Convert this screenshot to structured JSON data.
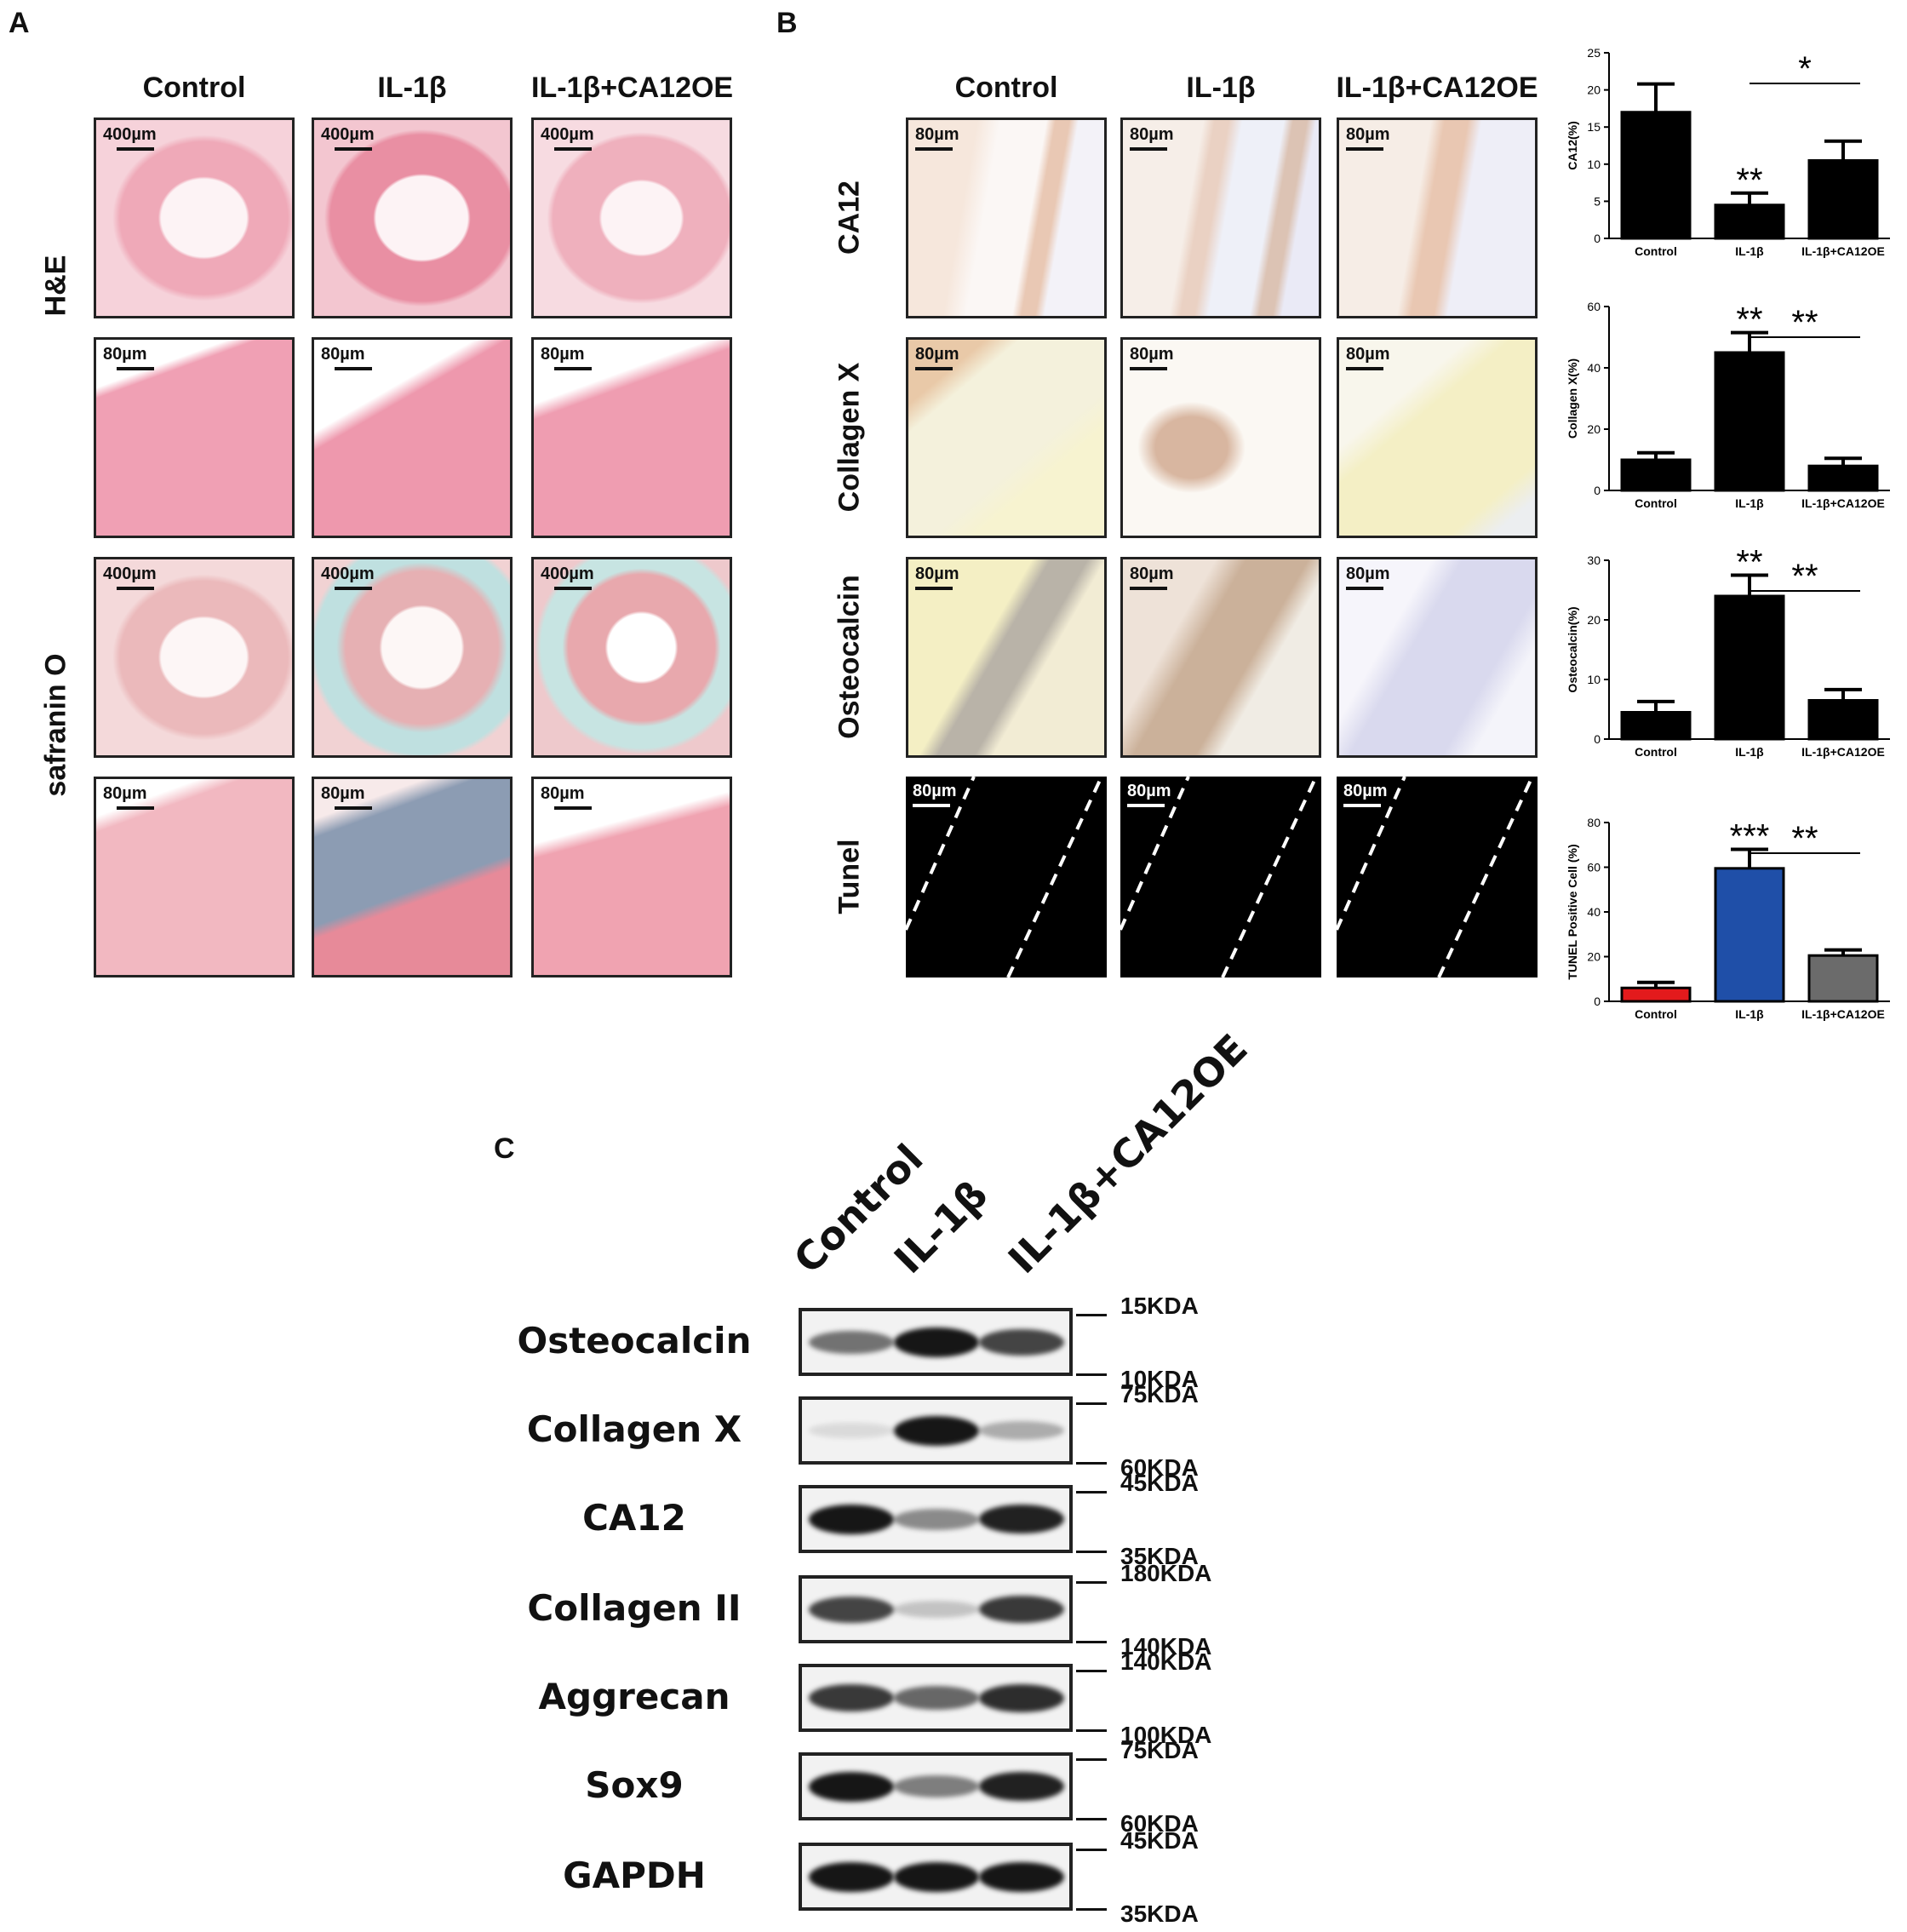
{
  "panelA": {
    "letter": "A",
    "columns": [
      "Control",
      "IL-1β",
      "IL-1β+CA12OE"
    ],
    "row_labels": [
      "H&E",
      "safranin O"
    ],
    "scale_labels": [
      [
        "400µm",
        "400µm",
        "400µm"
      ],
      [
        "80µm",
        "80µm",
        "80µm"
      ],
      [
        "400µm",
        "400µm",
        "400µm"
      ],
      [
        "80µm",
        "80µm",
        "80µm"
      ]
    ]
  },
  "panelB": {
    "letter": "B",
    "columns": [
      "Control",
      "IL-1β",
      "IL-1β+CA12OE"
    ],
    "row_labels": [
      "CA12",
      "Collagen X",
      "Osteocalcin",
      "Tunel"
    ],
    "scale_label": "80µm"
  },
  "chart_data": [
    {
      "type": "bar",
      "categories": [
        "Control",
        "IL-1β",
        "IL-1β+CA12OE"
      ],
      "values": [
        17,
        4.5,
        10.5
      ],
      "errors": [
        3.8,
        1.6,
        2.6
      ],
      "ylabel": "CA12(%)",
      "ylim": [
        0,
        25
      ],
      "yticks": [
        0,
        5,
        10,
        15,
        20,
        25
      ],
      "colors": [
        "#000000",
        "#000000",
        "#000000"
      ],
      "annotations": [
        {
          "text": "**",
          "category": "IL-1β"
        },
        {
          "text": "*",
          "between": [
            "IL-1β",
            "IL-1β+CA12OE"
          ]
        }
      ]
    },
    {
      "type": "bar",
      "categories": [
        "Control",
        "IL-1β",
        "IL-1β+CA12OE"
      ],
      "values": [
        10,
        45,
        8
      ],
      "errors": [
        2.3,
        6.5,
        2.5
      ],
      "ylabel": "Collagen X(%)",
      "ylim": [
        0,
        60
      ],
      "yticks": [
        0,
        20,
        40,
        60
      ],
      "colors": [
        "#000000",
        "#000000",
        "#000000"
      ],
      "annotations": [
        {
          "text": "**",
          "category": "IL-1β"
        },
        {
          "text": "**",
          "between": [
            "IL-1β",
            "IL-1β+CA12OE"
          ]
        }
      ]
    },
    {
      "type": "bar",
      "categories": [
        "Control",
        "IL-1β",
        "IL-1β+CA12OE"
      ],
      "values": [
        4.5,
        24,
        6.5
      ],
      "errors": [
        1.8,
        3.5,
        1.8
      ],
      "ylabel": "Osteocalcin(%)",
      "ylim": [
        0,
        30
      ],
      "yticks": [
        0,
        10,
        20,
        30
      ],
      "colors": [
        "#000000",
        "#000000",
        "#000000"
      ],
      "annotations": [
        {
          "text": "**",
          "category": "IL-1β"
        },
        {
          "text": "**",
          "between": [
            "IL-1β",
            "IL-1β+CA12OE"
          ]
        }
      ]
    },
    {
      "type": "bar",
      "categories": [
        "Control",
        "IL-1β",
        "IL-1β+CA12OE"
      ],
      "values": [
        6,
        59.5,
        20.5
      ],
      "errors": [
        2.5,
        8.5,
        2.5
      ],
      "ylabel": "TUNEL Positive Cell (%)",
      "ylim": [
        0,
        80
      ],
      "yticks": [
        0,
        20,
        40,
        60,
        80
      ],
      "colors": [
        "#e31a1c",
        "#1f4fa8",
        "#6b6b6b"
      ],
      "annotations": [
        {
          "text": "***",
          "category": "IL-1β"
        },
        {
          "text": "**",
          "between": [
            "IL-1β",
            "IL-1β+CA12OE"
          ]
        }
      ]
    }
  ],
  "panelC": {
    "letter": "C",
    "lanes": [
      "Control",
      "IL-1β",
      "IL-1β+CA12OE"
    ],
    "blots": [
      {
        "protein": "Osteocalcin",
        "upper": "15KDA",
        "lower": "10KDA",
        "band_intensity": [
          0.55,
          0.95,
          0.75
        ]
      },
      {
        "protein": "Collagen X",
        "upper": "75KDA",
        "lower": "60KDA",
        "band_intensity": [
          0.1,
          0.95,
          0.3
        ]
      },
      {
        "protein": "CA12",
        "upper": "45KDA",
        "lower": "35KDA",
        "band_intensity": [
          0.95,
          0.45,
          0.9
        ]
      },
      {
        "protein": "Collagen II",
        "upper": "180KDA",
        "lower": "140KDA",
        "band_intensity": [
          0.75,
          0.2,
          0.8
        ]
      },
      {
        "protein": "Aggrecan",
        "upper": "140KDA",
        "lower": "100KDA",
        "band_intensity": [
          0.8,
          0.6,
          0.85
        ]
      },
      {
        "protein": "Sox9",
        "upper": "75KDA",
        "lower": "60KDA",
        "band_intensity": [
          0.95,
          0.5,
          0.9
        ]
      },
      {
        "protein": "GAPDH",
        "upper": "45KDA",
        "lower": "35KDA",
        "band_intensity": [
          0.95,
          0.95,
          0.95
        ]
      }
    ]
  }
}
